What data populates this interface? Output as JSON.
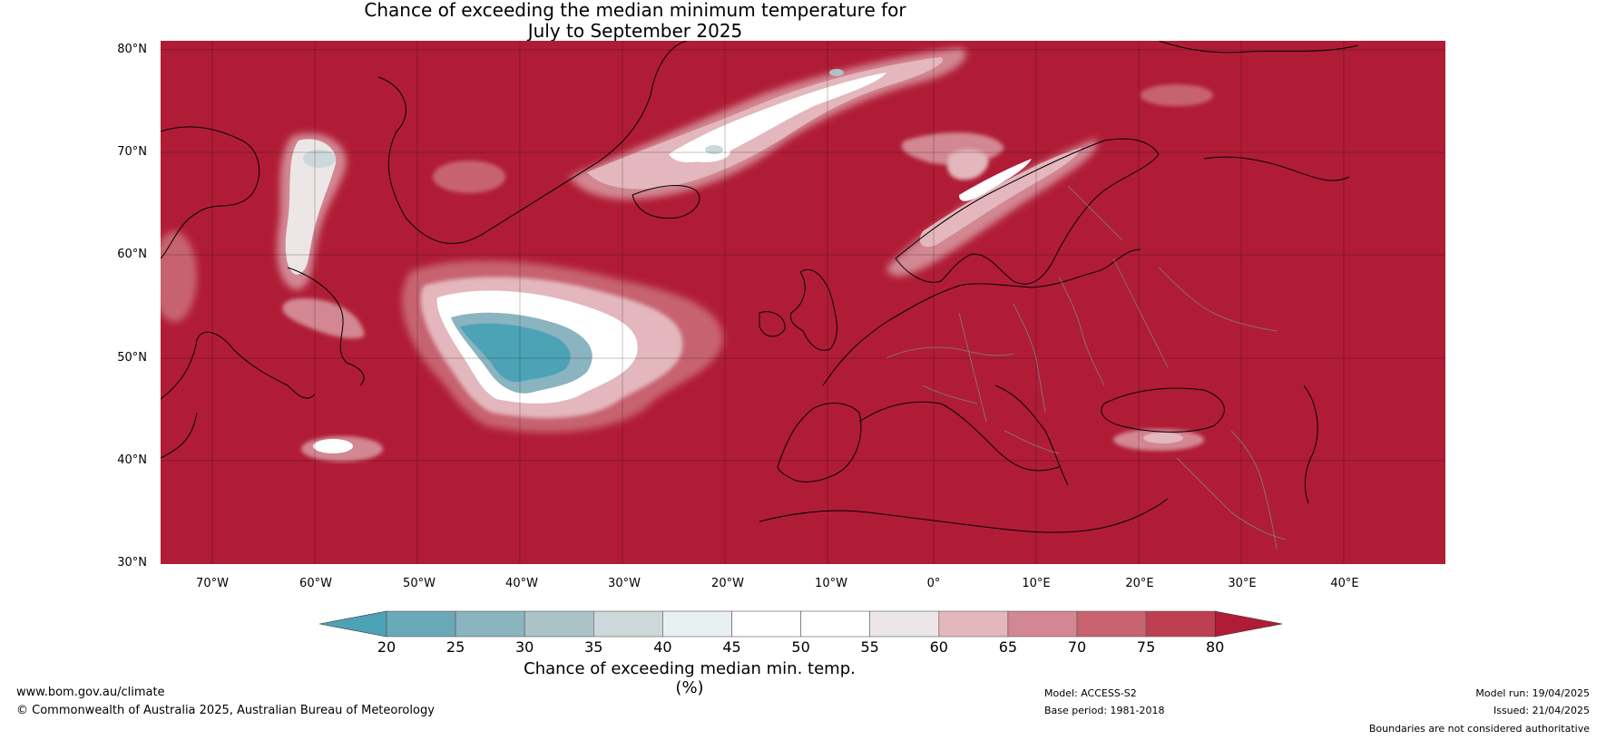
{
  "title": {
    "line1": "Chance of exceeding the median minimum temperature for",
    "line2": "July to September 2025"
  },
  "map": {
    "region": "North Atlantic and Europe",
    "projection": "equirectangular",
    "lat_labels": [
      "80°N",
      "70°N",
      "60°N",
      "50°N",
      "40°N",
      "30°N"
    ],
    "lon_labels": [
      "70°W",
      "60°W",
      "50°W",
      "40°W",
      "30°W",
      "20°W",
      "10°W",
      "0°",
      "10°E",
      "20°E",
      "30°E",
      "40°E"
    ],
    "background_category": ">80%",
    "colors": {
      "deep_red": "#b01c36",
      "teal": "#4aa3b8",
      "white": "#ffffff",
      "coastline": "#000000",
      "borders": "#808080"
    }
  },
  "colorbar": {
    "ticks": [
      "20",
      "25",
      "30",
      "35",
      "40",
      "45",
      "50",
      "55",
      "60",
      "65",
      "70",
      "75",
      "80"
    ],
    "colors": [
      "#4da3b6",
      "#6aa9b7",
      "#8ab4c0",
      "#abc3c8",
      "#cdd8da",
      "#e9f0f1",
      "#ffffff",
      "#ffffff",
      "#ece6e7",
      "#e3b7bd",
      "#d28792",
      "#c76470",
      "#bd3f50",
      "#b01c36"
    ],
    "label": "Chance of exceeding median min. temp. (%)"
  },
  "footer": {
    "website": "www.bom.gov.au/climate",
    "copyright": "© Commonwealth of Australia 2025, Australian Bureau of Meteorology",
    "model": "Model: ACCESS-S2",
    "base_period": "Base period: 1981-2018",
    "model_run": "Model run: 19/04/2025",
    "issued": "Issued: 21/04/2025",
    "disclaimer": "Boundaries are not considered authoritative"
  }
}
